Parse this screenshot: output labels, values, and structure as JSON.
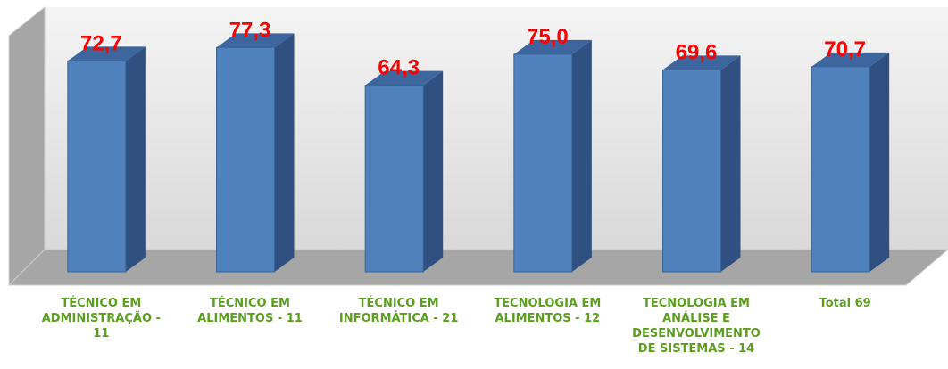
{
  "chart_data": {
    "type": "bar3d",
    "categories": [
      "TÉCNICO EM ADMINISTRAÇÃO - 11",
      "TÉCNICO EM ALIMENTOS - 11",
      "TÉCNICO EM INFORMÁTICA - 21",
      "TECNOLOGIA EM ALIMENTOS - 12",
      "TECNOLOGIA EM ANÁLISE E DESENVOLVIMENTO DE SISTEMAS - 14",
      "Total 69"
    ],
    "values": [
      72.7,
      77.3,
      64.3,
      75.0,
      69.6,
      70.7
    ],
    "value_labels": [
      "72,7",
      "77,3",
      "64,3",
      "75,0",
      "69,6",
      "70,7"
    ],
    "color": "#4f81bd",
    "ylim": [
      0,
      90
    ]
  }
}
